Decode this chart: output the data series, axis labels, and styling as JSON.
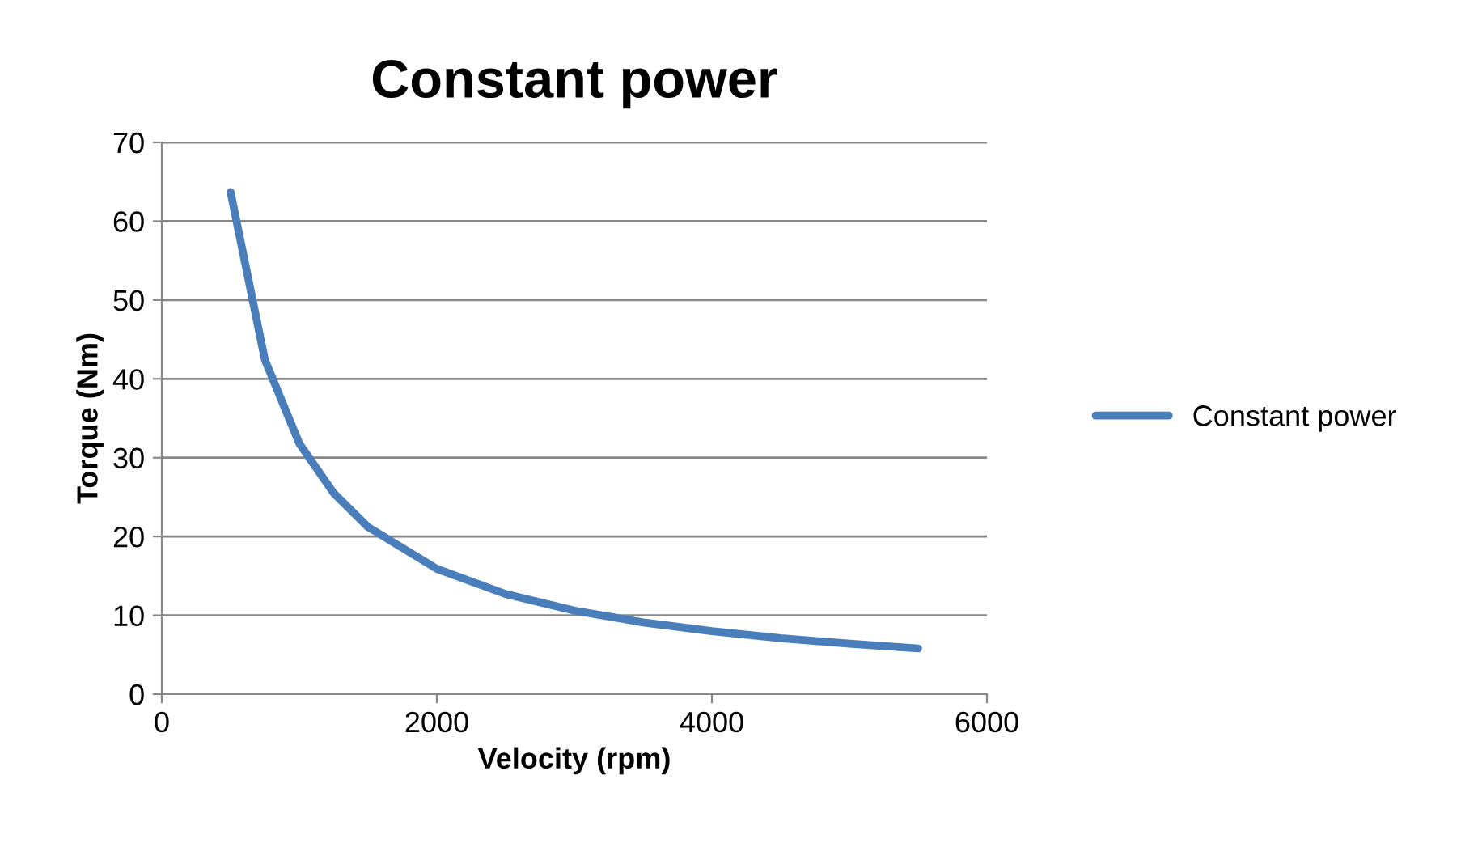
{
  "chart_data": {
    "type": "line",
    "title": "Constant power",
    "xlabel": "Velocity (rpm)",
    "ylabel": "Torque (Nm)",
    "x": [
      500,
      750,
      1000,
      1250,
      1500,
      2000,
      2500,
      3000,
      3500,
      4000,
      4500,
      5000,
      5500
    ],
    "series": [
      {
        "name": "Constant power",
        "color": "#4a7ebb",
        "values": [
          63.7,
          42.4,
          31.8,
          25.5,
          21.2,
          15.9,
          12.7,
          10.6,
          9.1,
          8.0,
          7.1,
          6.4,
          5.8
        ]
      }
    ],
    "xlim": [
      0,
      6000
    ],
    "xticks": [
      0,
      2000,
      4000,
      6000
    ],
    "ylim": [
      0,
      70
    ],
    "yticks": [
      0,
      10,
      20,
      30,
      40,
      50,
      60,
      70
    ],
    "grid": "y",
    "legend": "right",
    "marker": "none",
    "line_style": "solid"
  }
}
